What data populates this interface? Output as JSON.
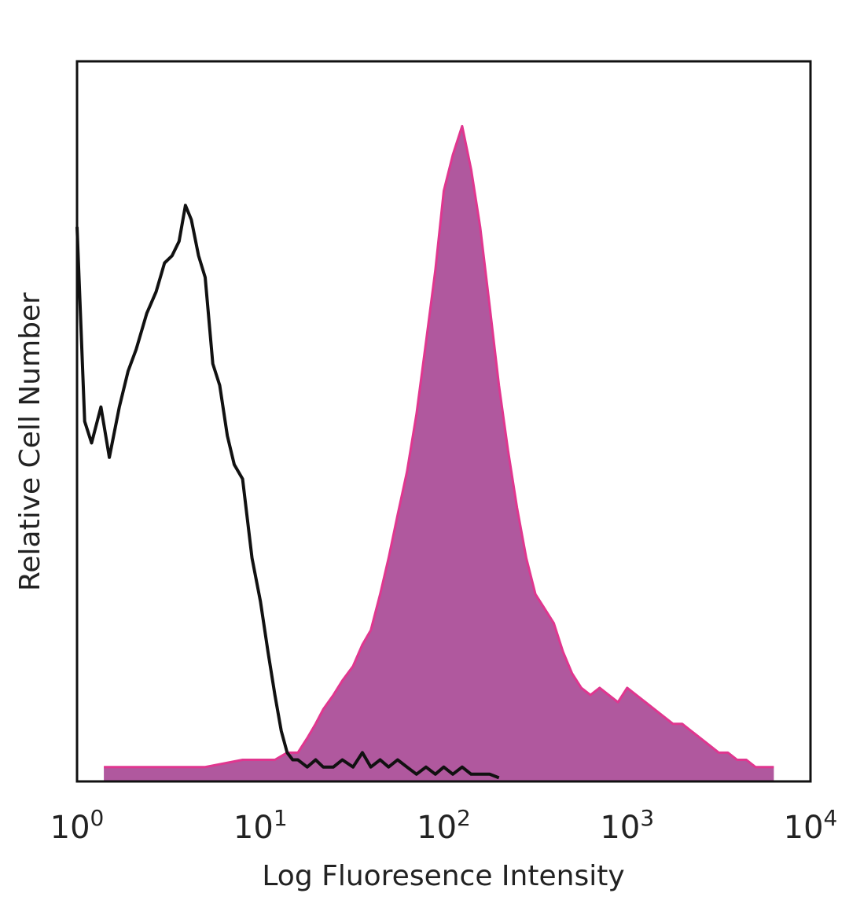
{
  "chart_data": {
    "type": "area",
    "title": "",
    "xlabel": "Log Fluoresence Intensity",
    "ylabel": "Relative Cell Number",
    "x_scale": "log",
    "xlim": [
      1,
      10000
    ],
    "ylim": [
      0,
      1.0
    ],
    "x_ticks": [
      {
        "base": "10",
        "exp": "0"
      },
      {
        "base": "10",
        "exp": "1"
      },
      {
        "base": "10",
        "exp": "2"
      },
      {
        "base": "10",
        "exp": "3"
      },
      {
        "base": "10",
        "exp": "4"
      }
    ],
    "grid": false,
    "legend": "none",
    "series": [
      {
        "style": "filled",
        "fill_color": "#b0589e",
        "line_color": "#e0368f",
        "x": [
          1.4,
          2.0,
          3.0,
          5.0,
          8.0,
          10,
          12,
          14,
          16,
          18,
          20,
          22,
          25,
          28,
          32,
          36,
          40,
          45,
          50,
          56,
          63,
          71,
          80,
          90,
          100,
          112,
          126,
          141,
          158,
          178,
          200,
          224,
          251,
          282,
          316,
          355,
          398,
          447,
          501,
          562,
          631,
          708,
          794,
          891,
          1000,
          1122,
          1259,
          1413,
          1585,
          1778,
          1995,
          2239,
          2512,
          2818,
          3162,
          3548,
          3981,
          4467,
          5012,
          5623,
          6310
        ],
        "y": [
          0.02,
          0.02,
          0.02,
          0.02,
          0.03,
          0.03,
          0.03,
          0.04,
          0.04,
          0.06,
          0.08,
          0.1,
          0.12,
          0.14,
          0.16,
          0.19,
          0.21,
          0.26,
          0.31,
          0.37,
          0.43,
          0.51,
          0.61,
          0.71,
          0.82,
          0.87,
          0.91,
          0.85,
          0.77,
          0.66,
          0.55,
          0.46,
          0.38,
          0.31,
          0.26,
          0.24,
          0.22,
          0.18,
          0.15,
          0.13,
          0.12,
          0.13,
          0.12,
          0.11,
          0.13,
          0.12,
          0.11,
          0.1,
          0.09,
          0.08,
          0.08,
          0.07,
          0.06,
          0.05,
          0.04,
          0.04,
          0.03,
          0.03,
          0.02,
          0.02,
          0.02
        ]
      },
      {
        "style": "line",
        "line_color": "#111111",
        "x": [
          1.0,
          1.1,
          1.2,
          1.35,
          1.5,
          1.7,
          1.9,
          2.1,
          2.4,
          2.7,
          3.0,
          3.3,
          3.6,
          3.9,
          4.2,
          4.6,
          5.0,
          5.5,
          6.0,
          6.6,
          7.2,
          8.0,
          9.0,
          10,
          11,
          12,
          13,
          14,
          15,
          16,
          18,
          20,
          22,
          25,
          28,
          32,
          36,
          40,
          45,
          50,
          56,
          63,
          71,
          80,
          90,
          100,
          112,
          126,
          141,
          158,
          178,
          200
        ],
        "y": [
          0.77,
          0.5,
          0.47,
          0.52,
          0.45,
          0.52,
          0.57,
          0.6,
          0.65,
          0.68,
          0.72,
          0.73,
          0.75,
          0.8,
          0.78,
          0.73,
          0.7,
          0.58,
          0.55,
          0.48,
          0.44,
          0.42,
          0.31,
          0.25,
          0.18,
          0.12,
          0.07,
          0.04,
          0.03,
          0.03,
          0.02,
          0.03,
          0.02,
          0.02,
          0.03,
          0.02,
          0.04,
          0.02,
          0.03,
          0.02,
          0.03,
          0.02,
          0.01,
          0.02,
          0.01,
          0.02,
          0.01,
          0.02,
          0.01,
          0.01,
          0.01,
          0.005
        ]
      }
    ]
  }
}
